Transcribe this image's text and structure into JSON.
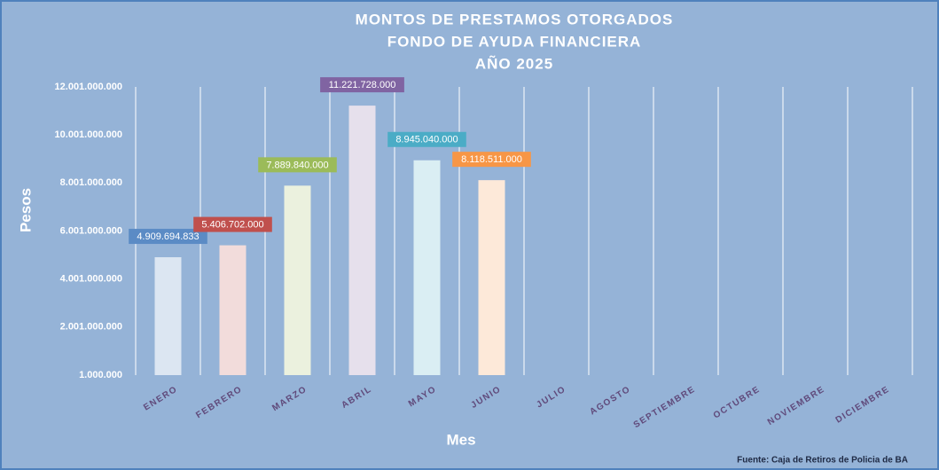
{
  "chart_data": {
    "type": "bar",
    "title_lines": [
      "MONTOS DE PRESTAMOS  OTORGADOS",
      "FONDO DE AYUDA FINANCIERA",
      "AÑO  2025"
    ],
    "y_label": "Pesos",
    "x_label": "Mes",
    "source": "Fuente: Caja de Retiros de Policia de BA",
    "categories": [
      "ENERO",
      "FEBRERO",
      "MARZO",
      "ABRIL",
      "MAYO",
      "JUNIO",
      "JULIO",
      "AGOSTO",
      "SEPTIEMBRE",
      "OCTUBRE",
      "NOVIEMBRE",
      "DICIEMBRE"
    ],
    "values": [
      4909694833,
      5406702000,
      7889840000,
      11221728000,
      8945040000,
      8118511000,
      null,
      null,
      null,
      null,
      null,
      null
    ],
    "value_labels": [
      "4.909.694.833",
      "5.406.702.000",
      "7.889.840.000",
      "11.221.728.000",
      "8.945.040.000",
      "8.118.511.000",
      null,
      null,
      null,
      null,
      null,
      null
    ],
    "bar_colors": [
      "#dce6f2",
      "#f2dcdb",
      "#ebf1de",
      "#e6e0ec",
      "#daeef3",
      "#fde9d9"
    ],
    "label_colors": [
      "#5b8bc5",
      "#c0504d",
      "#9bbb59",
      "#8064a2",
      "#4bacc6",
      "#f79646"
    ],
    "ylim": [
      1000000,
      12001000000
    ],
    "yticks": [
      {
        "value": 1000000,
        "label": "1.000.000"
      },
      {
        "value": 2001000000,
        "label": "2.001.000.000"
      },
      {
        "value": 4001000000,
        "label": "4.001.000.000"
      },
      {
        "value": 6001000000,
        "label": "6.001.000.000"
      },
      {
        "value": 8001000000,
        "label": "8.001.000.000"
      },
      {
        "value": 10001000000,
        "label": "10.001.000.000"
      },
      {
        "value": 12001000000,
        "label": "12.001.000.000"
      }
    ],
    "grid": true
  }
}
